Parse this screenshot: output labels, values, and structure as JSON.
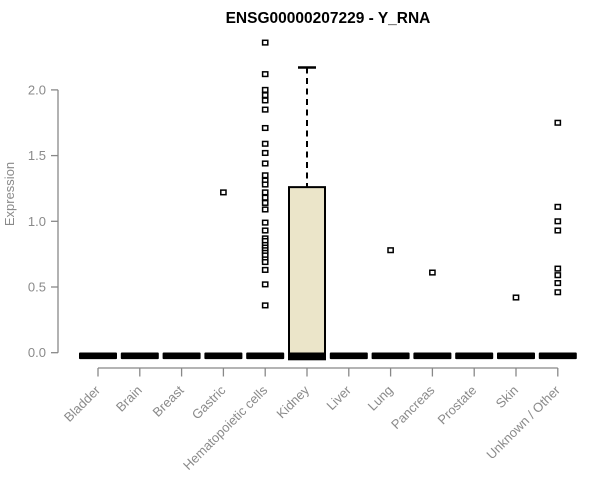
{
  "title": "ENSG00000207229 - Y_RNA",
  "chart_data": {
    "type": "box",
    "title": "ENSG00000207229 - Y_RNA",
    "xlabel": "",
    "ylabel": "Expression",
    "ylim": [
      0,
      2.4
    ],
    "yticks": [
      0.0,
      0.5,
      1.0,
      1.5,
      2.0
    ],
    "ytick_labels": [
      "0.0",
      "0.5",
      "1.0",
      "1.5",
      "2.0"
    ],
    "grid": "off",
    "legend": "none",
    "categories": [
      "Bladder",
      "Brain",
      "Breast",
      "Gastric",
      "Hematopoietic cells",
      "Kidney",
      "Liver",
      "Lung",
      "Pancreas",
      "Prostate",
      "Skin",
      "Unknown / Other"
    ],
    "boxes": [
      {
        "name": "Bladder",
        "whisker_low": 0,
        "q1": 0,
        "median": 0,
        "q3": 0,
        "whisker_high": 0,
        "outliers": []
      },
      {
        "name": "Brain",
        "whisker_low": 0,
        "q1": 0,
        "median": 0,
        "q3": 0,
        "whisker_high": 0,
        "outliers": []
      },
      {
        "name": "Breast",
        "whisker_low": 0,
        "q1": 0,
        "median": 0,
        "q3": 0,
        "whisker_high": 0,
        "outliers": []
      },
      {
        "name": "Gastric",
        "whisker_low": 0,
        "q1": 0,
        "median": 0,
        "q3": 0,
        "whisker_high": 0,
        "outliers": [
          1.22
        ]
      },
      {
        "name": "Hematopoietic cells",
        "whisker_low": 0,
        "q1": 0,
        "median": 0,
        "q3": 0,
        "whisker_high": 0,
        "outliers": [
          2.36,
          2.12,
          2.0,
          1.96,
          1.92,
          1.85,
          1.71,
          1.59,
          1.52,
          1.44,
          1.35,
          1.31,
          1.28,
          1.22,
          1.18,
          1.14,
          1.09,
          0.99,
          0.93,
          0.87,
          0.85,
          0.82,
          0.8,
          0.78,
          0.76,
          0.74,
          0.71,
          0.69,
          0.63,
          0.52,
          0.36
        ]
      },
      {
        "name": "Kidney",
        "whisker_low": 0,
        "q1": 0,
        "median": 0,
        "q3": 1.26,
        "whisker_high": 2.17,
        "outliers": []
      },
      {
        "name": "Liver",
        "whisker_low": 0,
        "q1": 0,
        "median": 0,
        "q3": 0,
        "whisker_high": 0,
        "outliers": []
      },
      {
        "name": "Lung",
        "whisker_low": 0,
        "q1": 0,
        "median": 0,
        "q3": 0,
        "whisker_high": 0,
        "outliers": [
          0.78
        ]
      },
      {
        "name": "Pancreas",
        "whisker_low": 0,
        "q1": 0,
        "median": 0,
        "q3": 0,
        "whisker_high": 0,
        "outliers": [
          0.61
        ]
      },
      {
        "name": "Prostate",
        "whisker_low": 0,
        "q1": 0,
        "median": 0,
        "q3": 0,
        "whisker_high": 0,
        "outliers": []
      },
      {
        "name": "Skin",
        "whisker_low": 0,
        "q1": 0,
        "median": 0,
        "q3": 0,
        "whisker_high": 0,
        "outliers": [
          0.42
        ]
      },
      {
        "name": "Unknown / Other",
        "whisker_low": 0,
        "q1": 0,
        "median": 0,
        "q3": 0,
        "whisker_high": 0,
        "outliers": [
          1.75,
          1.11,
          1.0,
          0.93,
          0.64,
          0.59,
          0.53,
          0.46
        ]
      }
    ],
    "colors": {
      "box_fill": "#ebe5c9",
      "box_stroke": "#000000",
      "median": "#000000",
      "whisker": "#000000",
      "zero_bar": "#000000",
      "outlier_fill": "#ffffff",
      "outlier_stroke": "#000000",
      "axis": "#888888",
      "tick_label": "#8a8a8a",
      "title": "#000000",
      "background": "#ffffff"
    }
  }
}
